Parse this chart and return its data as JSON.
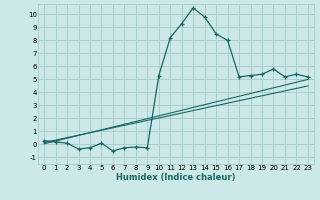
{
  "title": "",
  "xlabel": "Humidex (Indice chaleur)",
  "bg_color": "#cce8e8",
  "grid_color": "#aacece",
  "line_color": "#1a6666",
  "xlim": [
    -0.5,
    23.5
  ],
  "ylim": [
    -1.5,
    10.8
  ],
  "xticks": [
    0,
    1,
    2,
    3,
    4,
    5,
    6,
    7,
    8,
    9,
    10,
    11,
    12,
    13,
    14,
    15,
    16,
    17,
    18,
    19,
    20,
    21,
    22,
    23
  ],
  "yticks": [
    -1,
    0,
    1,
    2,
    3,
    4,
    5,
    6,
    7,
    8,
    9,
    10
  ],
  "main_x": [
    0,
    1,
    2,
    3,
    4,
    5,
    6,
    7,
    8,
    9,
    10,
    11,
    12,
    13,
    14,
    15,
    16,
    17,
    18,
    19,
    20,
    21,
    22,
    23
  ],
  "main_y": [
    0.3,
    0.2,
    0.1,
    -0.35,
    -0.25,
    0.1,
    -0.5,
    -0.25,
    -0.2,
    -0.25,
    5.3,
    8.2,
    9.3,
    10.5,
    9.8,
    8.5,
    8.0,
    5.2,
    5.3,
    5.4,
    5.8,
    5.2,
    5.4,
    5.2
  ],
  "trend1_x": [
    0,
    23
  ],
  "trend1_y": [
    0.15,
    4.5
  ],
  "trend2_x": [
    0,
    23
  ],
  "trend2_y": [
    0.05,
    5.0
  ]
}
